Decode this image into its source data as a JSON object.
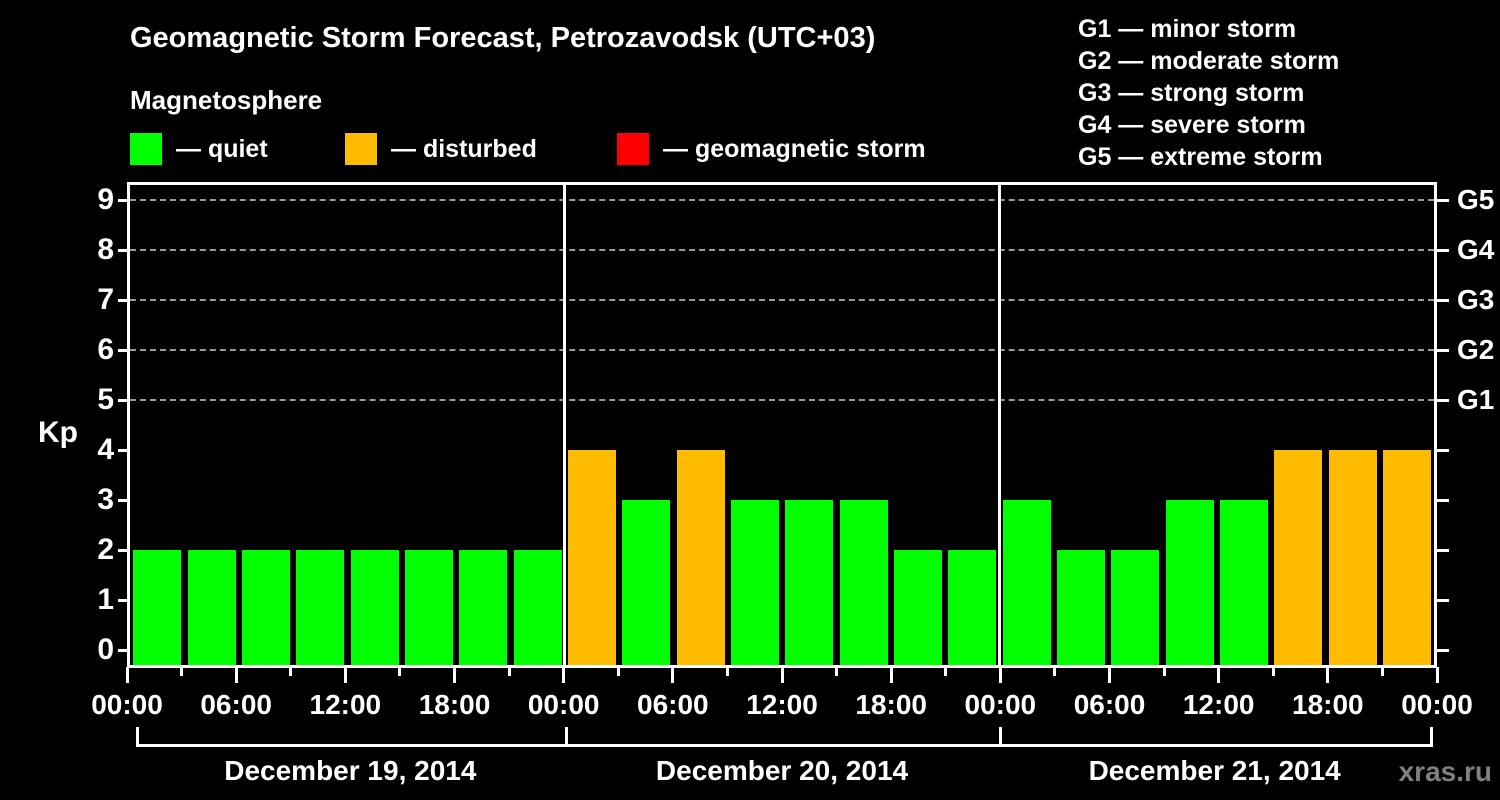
{
  "title": "Geomagnetic Storm Forecast, Petrozavodsk (UTC+03)",
  "subtitle": "Magnetosphere",
  "watermark": "xras.ru",
  "kp_legend": [
    {
      "status": "quiet",
      "label": "— quiet",
      "color": "#00ff00"
    },
    {
      "status": "disturbed",
      "label": "— disturbed",
      "color": "#ffbb00"
    },
    {
      "status": "storm",
      "label": "— geomagnetic storm",
      "color": "#ff0000"
    }
  ],
  "g_legend": [
    {
      "code": "G1",
      "text": "G1 — minor storm"
    },
    {
      "code": "G2",
      "text": "G2 — moderate storm"
    },
    {
      "code": "G3",
      "text": "G3 — strong storm"
    },
    {
      "code": "G4",
      "text": "G4 — severe storm"
    },
    {
      "code": "G5",
      "text": "G5 — extreme storm"
    }
  ],
  "chart_data": {
    "type": "bar",
    "title": "Geomagnetic Storm Forecast, Petrozavodsk (UTC+03)",
    "subtitle": "Magnetosphere",
    "ylabel": "Kp",
    "ylim": [
      0,
      9
    ],
    "yticks": [
      0,
      1,
      2,
      3,
      4,
      5,
      6,
      7,
      8,
      9
    ],
    "grid_levels_kp": [
      5,
      6,
      7,
      8,
      9
    ],
    "grid_style": "dashed",
    "right_axis_labels": [
      {
        "kp": 5,
        "label": "G1"
      },
      {
        "kp": 6,
        "label": "G2"
      },
      {
        "kp": 7,
        "label": "G3"
      },
      {
        "kp": 8,
        "label": "G4"
      },
      {
        "kp": 9,
        "label": "G5"
      }
    ],
    "hours_per_bar": 3,
    "x_tick_labels": [
      "00:00",
      "06:00",
      "12:00",
      "18:00",
      "00:00",
      "06:00",
      "12:00",
      "18:00",
      "00:00",
      "06:00",
      "12:00",
      "18:00",
      "00:00"
    ],
    "days": [
      {
        "date": "December 19, 2014",
        "values": [
          2,
          2,
          2,
          2,
          2,
          2,
          2,
          2
        ],
        "statuses": [
          "quiet",
          "quiet",
          "quiet",
          "quiet",
          "quiet",
          "quiet",
          "quiet",
          "quiet"
        ]
      },
      {
        "date": "December 20, 2014",
        "values": [
          4,
          3,
          4,
          3,
          3,
          3,
          2,
          2
        ],
        "statuses": [
          "disturbed",
          "quiet",
          "disturbed",
          "quiet",
          "quiet",
          "quiet",
          "quiet",
          "quiet"
        ]
      },
      {
        "date": "December 21, 2014",
        "values": [
          3,
          2,
          2,
          3,
          3,
          4,
          4,
          4
        ],
        "statuses": [
          "quiet",
          "quiet",
          "quiet",
          "quiet",
          "quiet",
          "disturbed",
          "disturbed",
          "disturbed"
        ]
      }
    ],
    "colors": {
      "quiet": "#00ff00",
      "disturbed": "#ffbb00",
      "storm": "#ff0000",
      "axis": "#ffffff",
      "grid": "#9a9a9a",
      "background": "#000000"
    },
    "legend_position": "top"
  }
}
